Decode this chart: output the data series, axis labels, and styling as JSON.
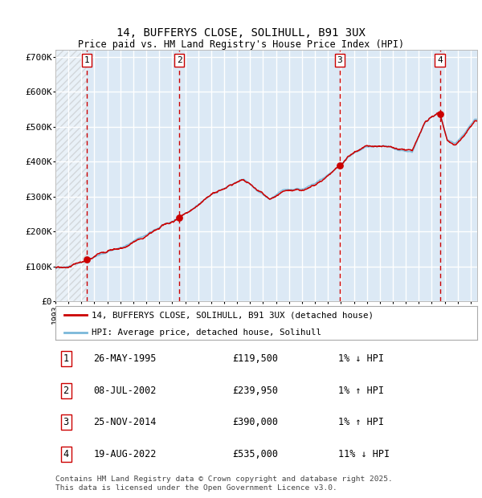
{
  "title": "14, BUFFERYS CLOSE, SOLIHULL, B91 3UX",
  "subtitle": "Price paid vs. HM Land Registry's House Price Index (HPI)",
  "ylim": [
    0,
    720000
  ],
  "yticks": [
    0,
    100000,
    200000,
    300000,
    400000,
    500000,
    600000,
    700000
  ],
  "ytick_labels": [
    "£0",
    "£100K",
    "£200K",
    "£300K",
    "£400K",
    "£500K",
    "£600K",
    "£700K"
  ],
  "background_color": "#dce9f5",
  "hpi_line_color": "#7ab8d9",
  "price_line_color": "#cc0000",
  "marker_color": "#cc0000",
  "vline_color": "#cc0000",
  "grid_color": "#ffffff",
  "transactions": [
    {
      "num": 1,
      "date": "26-MAY-1995",
      "price": 119500,
      "hpi_pct": "1%",
      "direction": "↓"
    },
    {
      "num": 2,
      "date": "08-JUL-2002",
      "price": 239950,
      "hpi_pct": "1%",
      "direction": "↑"
    },
    {
      "num": 3,
      "date": "25-NOV-2014",
      "price": 390000,
      "hpi_pct": "1%",
      "direction": "↑"
    },
    {
      "num": 4,
      "date": "19-AUG-2022",
      "price": 535000,
      "hpi_pct": "11%",
      "direction": "↓"
    }
  ],
  "transaction_years": [
    1995.4,
    2002.54,
    2014.9,
    2022.63
  ],
  "transaction_prices": [
    119500,
    239950,
    390000,
    535000
  ],
  "footer_line1": "Contains HM Land Registry data © Crown copyright and database right 2025.",
  "footer_line2": "This data is licensed under the Open Government Licence v3.0.",
  "legend_line1": "14, BUFFERYS CLOSE, SOLIHULL, B91 3UX (detached house)",
  "legend_line2": "HPI: Average price, detached house, Solihull",
  "xmin": 1993.0,
  "xmax": 2025.5
}
